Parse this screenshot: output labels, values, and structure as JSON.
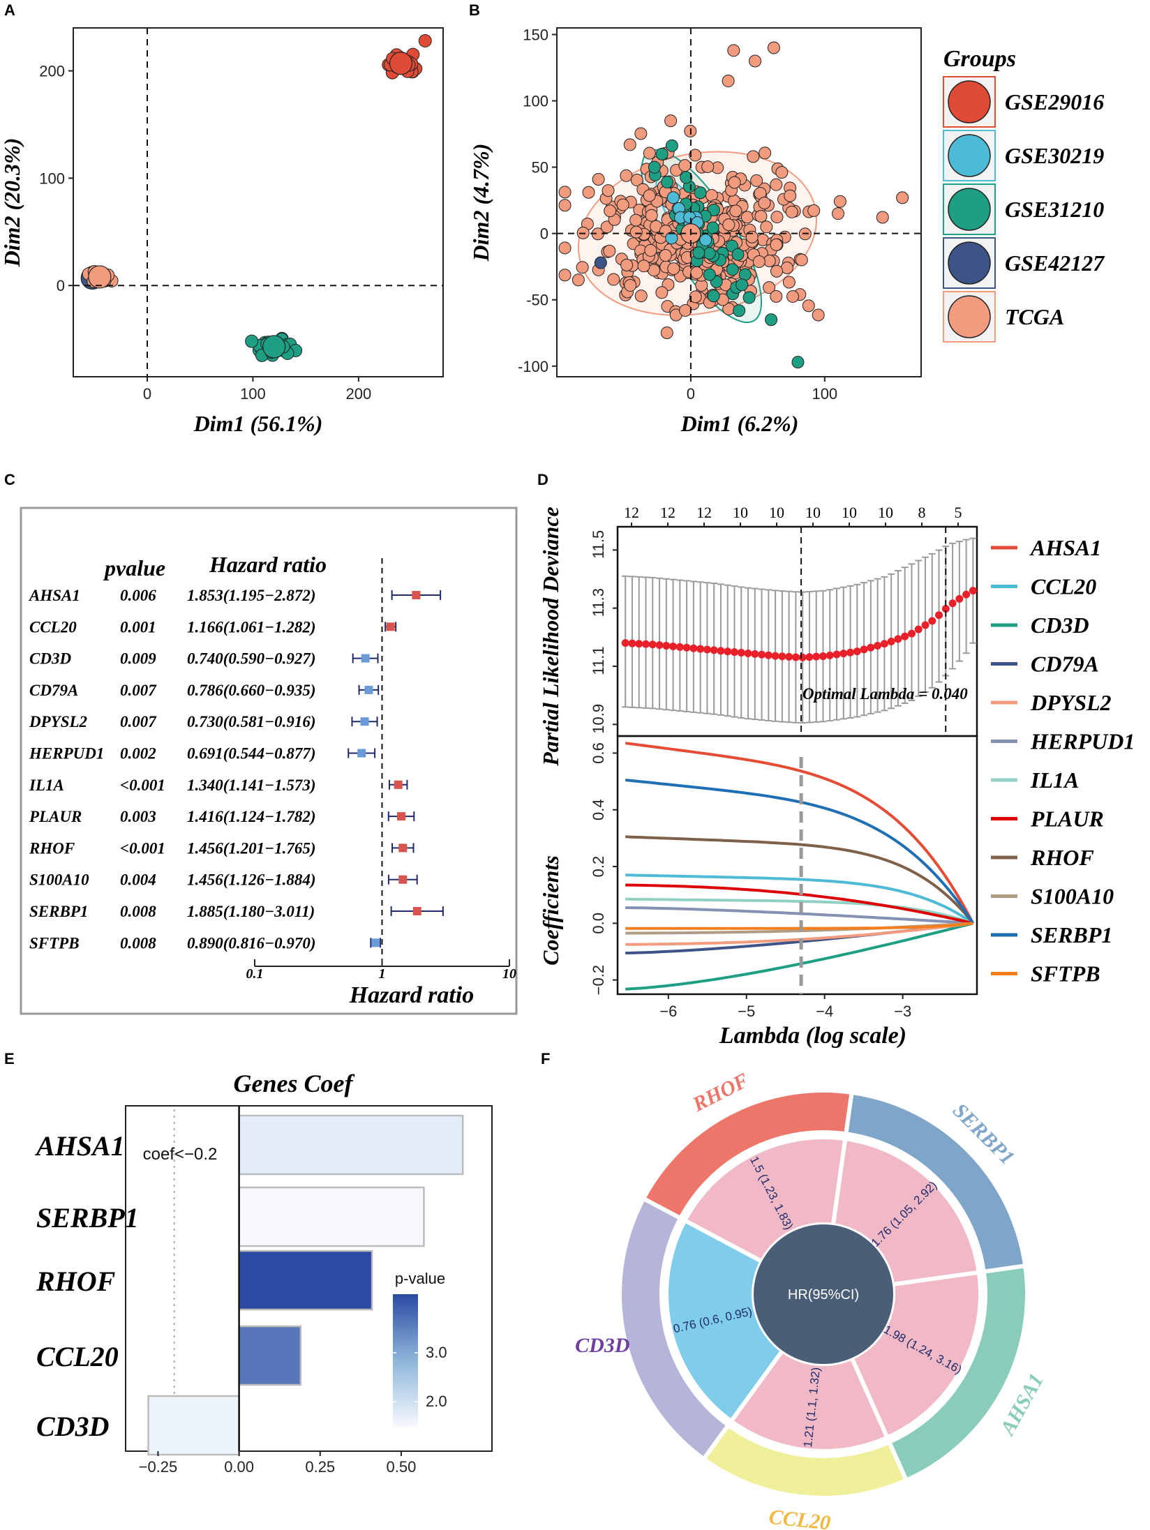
{
  "panel_labels": [
    "A",
    "B",
    "C",
    "D",
    "E",
    "F"
  ],
  "chart_data": [
    {
      "panel": "A",
      "type": "scatter",
      "xlabel": "Dim1 (56.1%)",
      "ylabel": "Dim2 (20.3%)",
      "xlim": [
        -70,
        280
      ],
      "ylim": [
        -85,
        240
      ],
      "xticks": [
        0,
        100,
        200
      ],
      "yticks": [
        0,
        100,
        200
      ],
      "reference_lines": {
        "x": 0,
        "y": 0
      },
      "series": [
        {
          "name": "GSE29016",
          "color": "#E04B35",
          "center": [
            240,
            207
          ],
          "spread": [
            7,
            4
          ],
          "n": 40
        },
        {
          "name": "GSE30219",
          "color": "#4DBBD5",
          "center": [
            -50,
            8
          ],
          "spread": [
            2,
            2
          ],
          "n": 12
        },
        {
          "name": "GSE31210",
          "color": "#1E9E82",
          "center": [
            120,
            -57
          ],
          "spread": [
            9,
            4
          ],
          "n": 40
        },
        {
          "name": "GSE42127",
          "color": "#3C5488",
          "center": [
            -52,
            7
          ],
          "spread": [
            2,
            2
          ],
          "n": 12
        },
        {
          "name": "TCGA",
          "color": "#F39B7F",
          "center": [
            -45,
            8
          ],
          "spread": [
            4,
            2
          ],
          "n": 25
        }
      ]
    },
    {
      "panel": "B",
      "type": "scatter",
      "xlabel": "Dim1 (6.2%)",
      "ylabel": "Dim2 (4.7%)",
      "xlim": [
        -100,
        172
      ],
      "ylim": [
        -108,
        155
      ],
      "xticks": [
        0,
        100
      ],
      "yticks": [
        -100,
        -50,
        0,
        50,
        100,
        150
      ],
      "reference_lines": {
        "x": 0,
        "y": 0
      },
      "legend_title": "Groups",
      "series": [
        {
          "name": "GSE29016",
          "color": "#E04B35",
          "center": [
            0,
            0
          ],
          "spread": [
            0,
            0
          ],
          "n": 0
        },
        {
          "name": "GSE30219",
          "color": "#4DBBD5",
          "center": [
            -2,
            8
          ],
          "spread": [
            10,
            10
          ],
          "n": 12
        },
        {
          "name": "GSE31210",
          "color": "#1E9E82",
          "center": [
            5,
            0
          ],
          "spread": [
            20,
            28
          ],
          "n": 45
        },
        {
          "name": "GSE42127",
          "color": "#3C5488",
          "center": [
            -70,
            -22
          ],
          "spread": [
            2,
            2
          ],
          "n": 1
        },
        {
          "name": "TCGA",
          "color": "#F39B7F",
          "center": [
            5,
            0
          ],
          "spread": [
            38,
            28
          ],
          "n": 380
        }
      ]
    },
    {
      "panel": "C",
      "type": "forest",
      "headers": {
        "pvalue": "pvalue",
        "hr": "Hazard ratio"
      },
      "xlabel": "Hazard ratio",
      "xticks": [
        "0.1",
        "1",
        "10"
      ],
      "xscale": "log",
      "rows": [
        {
          "gene": "AHSA1",
          "pvalue": "0.006",
          "hr_text": "1.853(1.195−2.872)",
          "hr": 1.853,
          "lo": 1.195,
          "hi": 2.872
        },
        {
          "gene": "CCL20",
          "pvalue": "0.001",
          "hr_text": "1.166(1.061−1.282)",
          "hr": 1.166,
          "lo": 1.061,
          "hi": 1.282
        },
        {
          "gene": "CD3D",
          "pvalue": "0.009",
          "hr_text": "0.740(0.590−0.927)",
          "hr": 0.74,
          "lo": 0.59,
          "hi": 0.927
        },
        {
          "gene": "CD79A",
          "pvalue": "0.007",
          "hr_text": "0.786(0.660−0.935)",
          "hr": 0.786,
          "lo": 0.66,
          "hi": 0.935
        },
        {
          "gene": "DPYSL2",
          "pvalue": "0.007",
          "hr_text": "0.730(0.581−0.916)",
          "hr": 0.73,
          "lo": 0.581,
          "hi": 0.916
        },
        {
          "gene": "HERPUD1",
          "pvalue": "0.002",
          "hr_text": "0.691(0.544−0.877)",
          "hr": 0.691,
          "lo": 0.544,
          "hi": 0.877
        },
        {
          "gene": "IL1A",
          "pvalue": "<0.001",
          "hr_text": "1.340(1.141−1.573)",
          "hr": 1.34,
          "lo": 1.141,
          "hi": 1.573
        },
        {
          "gene": "PLAUR",
          "pvalue": "0.003",
          "hr_text": "1.416(1.124−1.782)",
          "hr": 1.416,
          "lo": 1.124,
          "hi": 1.782
        },
        {
          "gene": "RHOF",
          "pvalue": "<0.001",
          "hr_text": "1.456(1.201−1.765)",
          "hr": 1.456,
          "lo": 1.201,
          "hi": 1.765
        },
        {
          "gene": "S100A10",
          "pvalue": "0.004",
          "hr_text": "1.456(1.126−1.884)",
          "hr": 1.456,
          "lo": 1.126,
          "hi": 1.884
        },
        {
          "gene": "SERBP1",
          "pvalue": "0.008",
          "hr_text": "1.885(1.180−3.011)",
          "hr": 1.885,
          "lo": 1.18,
          "hi": 3.011
        },
        {
          "gene": "SFTPB",
          "pvalue": "0.008",
          "hr_text": "0.890(0.816−0.970)",
          "hr": 0.89,
          "lo": 0.816,
          "hi": 0.97
        }
      ],
      "colors": {
        "risk": "#D9534F",
        "protective": "#6A9BD8",
        "whisker": "#1F2A6B"
      }
    },
    {
      "panel": "D",
      "type": "line",
      "xlabel": "Lambda (log scale)",
      "top_ylabel": "Partial Likelihood Deviance",
      "bottom_ylabel": "Coefficients",
      "xlim": [
        -6.65,
        -2.05
      ],
      "xticks": [
        -6,
        -5,
        -4,
        -3
      ],
      "top_ylim": [
        10.86,
        11.58
      ],
      "top_yticks": [
        10.9,
        11.1,
        11.3,
        11.5
      ],
      "bottom_ylim": [
        -0.25,
        0.66
      ],
      "bottom_yticks": [
        -0.2,
        0.0,
        0.2,
        0.4,
        0.6
      ],
      "top_axis_counts": [
        "12",
        "12",
        "12",
        "10",
        "10",
        "10",
        "10",
        "10",
        "8",
        "5"
      ],
      "lambda_min": -4.3,
      "lambda_1se": -2.45,
      "annotation": "Optimal Lambda = 0.040",
      "cv_curve": {
        "lambda": [
          -6.55,
          -6.2,
          -5.8,
          -5.4,
          -5.0,
          -4.6,
          -4.3,
          -4.0,
          -3.6,
          -3.2,
          -2.9,
          -2.6,
          -2.4,
          -2.2,
          -2.1
        ],
        "mean": [
          11.18,
          11.175,
          11.165,
          11.155,
          11.145,
          11.135,
          11.13,
          11.135,
          11.15,
          11.18,
          11.21,
          11.26,
          11.31,
          11.345,
          11.36
        ],
        "upper": [
          11.41,
          11.405,
          11.395,
          11.385,
          11.37,
          11.36,
          11.355,
          11.36,
          11.38,
          11.41,
          11.45,
          11.49,
          11.52,
          11.535,
          11.54
        ],
        "lower": [
          10.96,
          10.955,
          10.945,
          10.935,
          10.92,
          10.91,
          10.905,
          10.91,
          10.925,
          10.95,
          10.98,
          11.03,
          11.08,
          11.14,
          11.18
        ]
      },
      "series": [
        {
          "name": "AHSA1",
          "color": "#E64B35",
          "start": 0.635,
          "curve": "late"
        },
        {
          "name": "CCL20",
          "color": "#4DBBD5",
          "start": 0.17,
          "curve": "late"
        },
        {
          "name": "CD3D",
          "color": "#1E9E82",
          "start": -0.232,
          "curve": "early"
        },
        {
          "name": "CD79A",
          "color": "#3C5488",
          "start": -0.105,
          "curve": "early"
        },
        {
          "name": "DPYSL2",
          "color": "#F39B7F",
          "start": -0.075,
          "curve": "mid"
        },
        {
          "name": "HERPUD1",
          "color": "#8491B4",
          "start": 0.055,
          "curve": "early"
        },
        {
          "name": "IL1A",
          "color": "#91D1C2",
          "start": 0.085,
          "curve": "late"
        },
        {
          "name": "PLAUR",
          "color": "#DC0000",
          "start": 0.135,
          "curve": "mid"
        },
        {
          "name": "RHOF",
          "color": "#7E6148",
          "start": 0.305,
          "curve": "late"
        },
        {
          "name": "S100A10",
          "color": "#B09C85",
          "start": -0.035,
          "curve": "mid"
        },
        {
          "name": "SERBP1",
          "color": "#1F6FB4",
          "start": 0.505,
          "curve": "late"
        },
        {
          "name": "SFTPB",
          "color": "#F57F1E",
          "start": -0.018,
          "curve": "flat"
        }
      ]
    },
    {
      "panel": "E",
      "type": "bar",
      "orientation": "horizontal",
      "title": "Genes Coef",
      "categories": [
        "AHSA1",
        "SERBP1",
        "RHOF",
        "CCL20",
        "CD3D"
      ],
      "values": [
        0.69,
        0.57,
        0.41,
        0.19,
        -0.28
      ],
      "pvalue_scale": [
        0.2,
        0.0,
        1.0,
        0.85,
        0.1
      ],
      "xlim": [
        -0.35,
        0.78
      ],
      "xticks": [
        "-0.25",
        "0.00",
        "0.25",
        "0.50"
      ],
      "threshold_line": -0.2,
      "threshold_label": "coef<−0.2",
      "legend_title": "p-value",
      "legend_ticks": [
        "3.0",
        "2.0"
      ],
      "colors": {
        "low": "#F7F9FD",
        "high": "#2A4AA3"
      }
    },
    {
      "panel": "F",
      "type": "pie",
      "center_label": "HR(95%CI)",
      "slices": [
        {
          "gene": "RHOF",
          "label": "1.5 (1.23, 1.83)",
          "outer_color": "#EE7569",
          "inner_color": "#F0B9C5",
          "label_color": "#EE7569"
        },
        {
          "gene": "SERBP1",
          "label": "1.76 (1.05, 2.92)",
          "outer_color": "#7FA6C8",
          "inner_color": "#F0B9C5",
          "label_color": "#7FA6C8"
        },
        {
          "gene": "AHSA1",
          "label": "1.98 (1.24, 3.16)",
          "outer_color": "#88CCB9",
          "inner_color": "#F0B9C5",
          "label_color": "#88CCB9"
        },
        {
          "gene": "CCL20",
          "label": "1.21 (1.1, 1.32)",
          "outer_color": "#F1F09A",
          "inner_color": "#F0B9C5",
          "label_color": "#F0B840"
        },
        {
          "gene": "CD3D",
          "label": "0.76 (0.6, 0.95)",
          "outer_color": "#B5B5D9",
          "inner_color": "#80CDEB",
          "label_color": "#6F3FA0"
        }
      ]
    }
  ]
}
